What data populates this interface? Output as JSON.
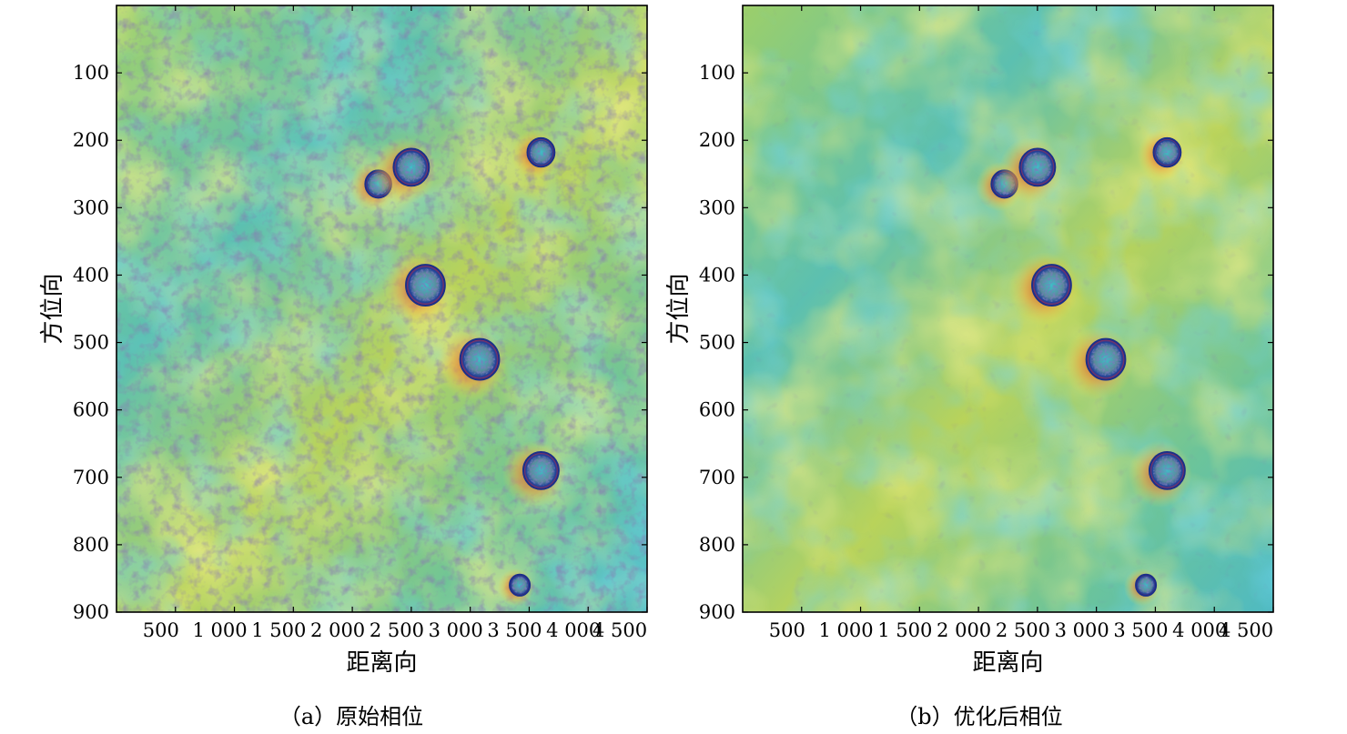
{
  "figure": {
    "panels": [
      {
        "caption": "（a）原始相位"
      },
      {
        "caption": "（b）优化后相位"
      }
    ]
  },
  "chart_data": [
    {
      "type": "heatmap",
      "title": "",
      "xlabel": "距离向",
      "ylabel": "方位向",
      "xlim": [
        0,
        4500
      ],
      "ylim": [
        900,
        0
      ],
      "x_ticks": [
        500,
        1000,
        1500,
        2000,
        2500,
        3000,
        3500,
        4000,
        4500
      ],
      "x_tick_labels": [
        "500",
        "1 000",
        "1 500",
        "2 000",
        "2 500",
        "3 000",
        "3 500",
        "4 000",
        "4 500"
      ],
      "y_ticks": [
        100,
        200,
        300,
        400,
        500,
        600,
        700,
        800,
        900
      ],
      "y_tick_labels": [
        "100",
        "200",
        "300",
        "400",
        "500",
        "600",
        "700",
        "800",
        "900"
      ],
      "colormap": [
        "#1f6fd8",
        "#2ba6e0",
        "#3dbfc8",
        "#7cc57a",
        "#c9d44a",
        "#e8e04a",
        "#f2a03a",
        "#d83a2a",
        "#5a2a8a"
      ],
      "noise": "high",
      "features": [
        {
          "x": 2220,
          "y": 265,
          "r": 110
        },
        {
          "x": 2500,
          "y": 240,
          "r": 150
        },
        {
          "x": 3600,
          "y": 218,
          "r": 115
        },
        {
          "x": 2620,
          "y": 415,
          "r": 165
        },
        {
          "x": 3080,
          "y": 525,
          "r": 165
        },
        {
          "x": 3600,
          "y": 690,
          "r": 150
        },
        {
          "x": 3420,
          "y": 860,
          "r": 85
        }
      ]
    },
    {
      "type": "heatmap",
      "title": "",
      "xlabel": "距离向",
      "ylabel": "方位向",
      "xlim": [
        0,
        4500
      ],
      "ylim": [
        900,
        0
      ],
      "x_ticks": [
        500,
        1000,
        1500,
        2000,
        2500,
        3000,
        3500,
        4000,
        4500
      ],
      "x_tick_labels": [
        "500",
        "1 000",
        "1 500",
        "2 000",
        "2 500",
        "3 000",
        "3 500",
        "4 000",
        "4 500"
      ],
      "y_ticks": [
        100,
        200,
        300,
        400,
        500,
        600,
        700,
        800,
        900
      ],
      "y_tick_labels": [
        "100",
        "200",
        "300",
        "400",
        "500",
        "600",
        "700",
        "800",
        "900"
      ],
      "colormap": [
        "#1f6fd8",
        "#2ba6e0",
        "#3dbfc8",
        "#7cc57a",
        "#c9d44a",
        "#e8e04a",
        "#f2a03a",
        "#d83a2a",
        "#5a2a8a"
      ],
      "noise": "low",
      "features": [
        {
          "x": 2220,
          "y": 265,
          "r": 110
        },
        {
          "x": 2500,
          "y": 240,
          "r": 150
        },
        {
          "x": 3600,
          "y": 218,
          "r": 115
        },
        {
          "x": 2620,
          "y": 415,
          "r": 165
        },
        {
          "x": 3080,
          "y": 525,
          "r": 165
        },
        {
          "x": 3600,
          "y": 690,
          "r": 150
        },
        {
          "x": 3420,
          "y": 860,
          "r": 85
        }
      ]
    }
  ]
}
